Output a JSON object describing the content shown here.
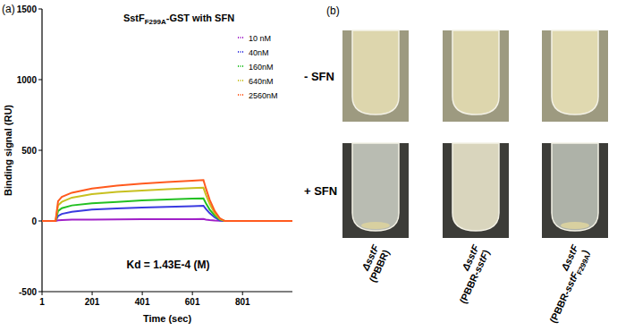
{
  "chart_data": {
    "type": "line",
    "title": {
      "text": "SstF",
      "subscript": "F299A",
      "suffix": "-GST with SFN"
    },
    "x_label": "Time (sec)",
    "y_label": "Binding signal (RU)",
    "annotations": [
      "(a)",
      "Kd = 1.43E-4 (M)"
    ],
    "x": [
      1,
      55,
      65,
      80,
      120,
      200,
      300,
      400,
      500,
      600,
      645,
      655,
      670,
      690,
      710,
      730,
      800,
      900,
      1000
    ],
    "series": [
      {
        "name": "10 nM",
        "color": "#a020c8",
        "values": [
          0,
          0,
          5,
          7,
          9,
          10,
          11,
          12,
          12,
          13,
          14,
          10,
          6,
          3,
          1,
          0,
          0,
          0,
          0
        ]
      },
      {
        "name": "40nM",
        "color": "#3a3ae0",
        "values": [
          0,
          0,
          35,
          50,
          65,
          80,
          88,
          95,
          100,
          105,
          108,
          85,
          55,
          25,
          5,
          0,
          0,
          0,
          0
        ]
      },
      {
        "name": "160nM",
        "color": "#22c022",
        "values": [
          0,
          0,
          70,
          90,
          110,
          125,
          135,
          145,
          152,
          158,
          160,
          125,
          80,
          40,
          10,
          0,
          0,
          0,
          0
        ]
      },
      {
        "name": "640nM",
        "color": "#c8c020",
        "values": [
          0,
          0,
          110,
          135,
          165,
          190,
          205,
          215,
          225,
          232,
          235,
          185,
          120,
          55,
          15,
          0,
          0,
          0,
          0
        ]
      },
      {
        "name": "2560nM",
        "color": "#ff5a1e",
        "values": [
          0,
          0,
          140,
          170,
          200,
          230,
          250,
          265,
          275,
          285,
          290,
          230,
          150,
          70,
          20,
          0,
          0,
          0,
          0
        ]
      }
    ],
    "xlim": [
      1,
      1000
    ],
    "xticks": [
      1,
      201,
      401,
      601,
      801
    ],
    "ylim": [
      -500,
      1500
    ],
    "yticks": [
      -500,
      0,
      500,
      1000,
      1500
    ],
    "grid": false,
    "legend": "upper right"
  },
  "panel_b": {
    "label": "(b)",
    "rows": [
      "-  SFN",
      "+ SFN"
    ],
    "columns": [
      [
        [
          "ΔsstF"
        ],
        [
          "(PBBR)"
        ]
      ],
      [
        [
          "ΔsstF"
        ],
        [
          "(PBBR-",
          "sstF",
          ")"
        ]
      ],
      [
        [
          "ΔsstF"
        ],
        [
          "(PBBR-",
          "sstF",
          "F299A",
          ")"
        ]
      ]
    ]
  }
}
